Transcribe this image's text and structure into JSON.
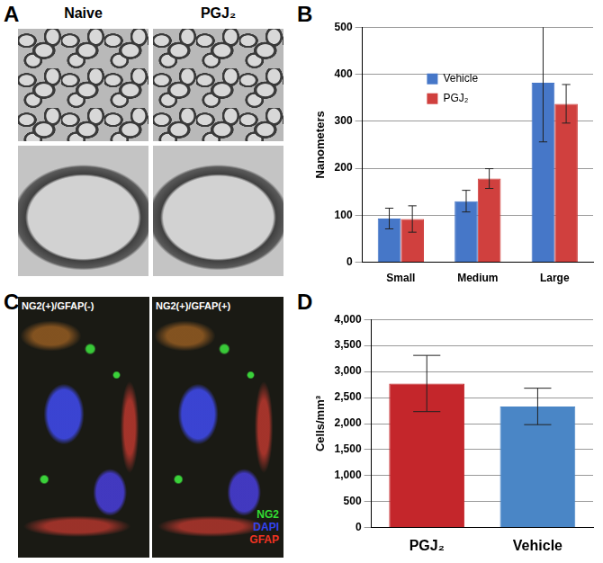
{
  "panels": {
    "A": {
      "label": "A",
      "headers": [
        "Naive",
        "PGJ₂"
      ]
    },
    "C": {
      "label": "C",
      "headers": [
        "NG2(+)/GFAP(-)",
        "NG2(+)/GFAP(+)"
      ],
      "stain_legend": [
        {
          "text": "NG2",
          "color": "#33dd33"
        },
        {
          "text": "DAPI",
          "color": "#3344ee"
        },
        {
          "text": "GFAP",
          "color": "#ee3322"
        }
      ]
    }
  },
  "chart_data": [
    {
      "type": "bar",
      "annotations": [
        "B"
      ],
      "categories": [
        "Small",
        "Medium",
        "Large"
      ],
      "y_label": "Nanometers",
      "series": [
        {
          "name": "Vehicle",
          "color": "#4677c8",
          "values": [
            93,
            130,
            382
          ],
          "errors": [
            22,
            23,
            126
          ]
        },
        {
          "name": "PGJ₂",
          "color": "#d0403e",
          "values": [
            92,
            178,
            337
          ],
          "errors": [
            28,
            21,
            41
          ]
        }
      ],
      "ylim": [
        0,
        500
      ],
      "yticks": [
        0,
        100,
        200,
        300,
        400,
        500
      ],
      "grid": true,
      "legend": "upper left"
    },
    {
      "type": "bar",
      "annotations": [
        "D"
      ],
      "categories": [
        "PGJ₂",
        "Vehicle"
      ],
      "y_label": "Cells/mm³",
      "values": [
        2770,
        2330
      ],
      "errors": [
        540,
        350
      ],
      "colors": [
        "#c4262b",
        "#4a86c6"
      ],
      "ylim": [
        0,
        4000
      ],
      "yticks": [
        0,
        500,
        1000,
        1500,
        2000,
        2500,
        3000,
        3500,
        4000
      ],
      "grid": true
    }
  ]
}
